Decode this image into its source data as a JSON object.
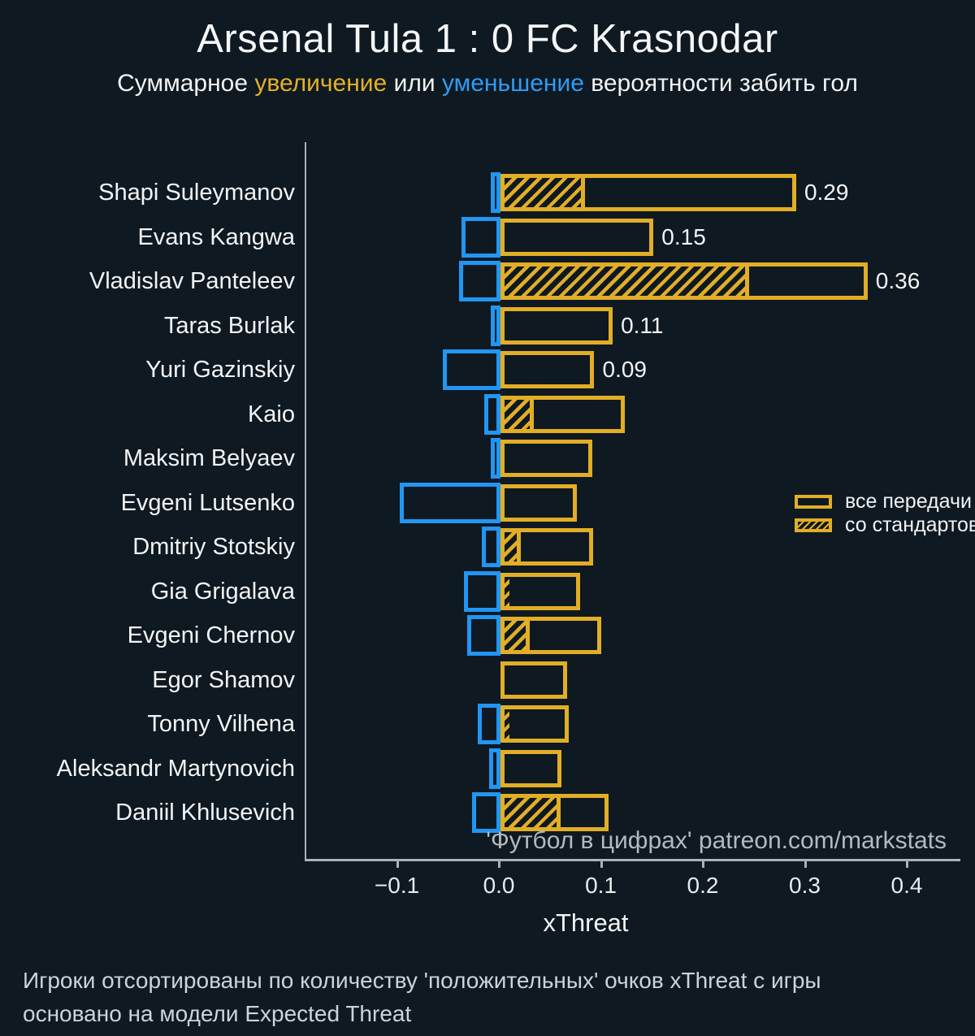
{
  "colors": {
    "background": "#0e1922",
    "positive": "#e2ae26",
    "negative": "#2196f3",
    "axis": "#a9b3b5",
    "text": "#f2f4f4",
    "subtitle_increase": "#e4b028",
    "subtitle_decrease": "#2e9df5",
    "watermark": "#b3babd",
    "footer": "#ced3d6"
  },
  "chart_data": {
    "type": "bar",
    "orientation": "horizontal",
    "title": "Arsenal Tula 1 : 0 FC Krasnodar",
    "subtitle_parts": [
      {
        "text": "Суммарное ",
        "style": "default"
      },
      {
        "text": "увеличение",
        "style": "increase"
      },
      {
        "text": " или ",
        "style": "default"
      },
      {
        "text": "уменьшение",
        "style": "decrease"
      },
      {
        "text": " вероятности забить гол",
        "style": "default"
      }
    ],
    "xlabel": "xThreat",
    "xlim": [
      -0.1905,
      0.451
    ],
    "xticks": [
      {
        "value": -0.1,
        "label": "−0.1"
      },
      {
        "value": 0.0,
        "label": "0.0"
      },
      {
        "value": 0.1,
        "label": "0.1"
      },
      {
        "value": 0.2,
        "label": "0.2"
      },
      {
        "value": 0.3,
        "label": "0.3"
      },
      {
        "value": 0.4,
        "label": "0.4"
      }
    ],
    "legend": [
      {
        "label": "все передачи",
        "swatch": "outline"
      },
      {
        "label": "со стандартов",
        "swatch": "hatch"
      }
    ],
    "watermark": "'Футбол в цифрах' patreon.com/markstats",
    "players": [
      {
        "name": "Shapi Suleymanov",
        "negative": -0.01,
        "positive": 0.29,
        "set_piece": 0.079,
        "label": "0.29"
      },
      {
        "name": "Evans Kangwa",
        "negative": -0.038,
        "positive": 0.15,
        "set_piece": 0,
        "label": "0.15"
      },
      {
        "name": "Vladislav Panteleev",
        "negative": -0.041,
        "positive": 0.36,
        "set_piece": 0.24,
        "label": "0.36"
      },
      {
        "name": "Taras Burlak",
        "negative": -0.01,
        "positive": 0.11,
        "set_piece": 0,
        "label": "0.11"
      },
      {
        "name": "Yuri Gazinskiy",
        "negative": -0.057,
        "positive": 0.092,
        "set_piece": 0,
        "label": "0.09"
      },
      {
        "name": "Kaio",
        "negative": -0.016,
        "positive": 0.122,
        "set_piece": 0.029,
        "label": ""
      },
      {
        "name": "Maksim Belyaev",
        "negative": -0.01,
        "positive": 0.09,
        "set_piece": 0,
        "label": ""
      },
      {
        "name": "Evgeni Lutsenko",
        "negative": -0.099,
        "positive": 0.075,
        "set_piece": 0,
        "label": ""
      },
      {
        "name": "Dmitriy Stotskiy",
        "negative": -0.018,
        "positive": 0.091,
        "set_piece": 0.016,
        "label": ""
      },
      {
        "name": "Gia Grigalava",
        "negative": -0.036,
        "positive": 0.078,
        "set_piece": 0.005,
        "label": ""
      },
      {
        "name": "Evgeni Chernov",
        "negative": -0.033,
        "positive": 0.099,
        "set_piece": 0.025,
        "label": ""
      },
      {
        "name": "Egor Shamov",
        "negative": 0,
        "positive": 0.065,
        "set_piece": 0,
        "label": ""
      },
      {
        "name": "Tonny Vilhena",
        "negative": -0.022,
        "positive": 0.067,
        "set_piece": 0.005,
        "label": ""
      },
      {
        "name": "Aleksandr Martynovich",
        "negative": -0.011,
        "positive": 0.06,
        "set_piece": 0,
        "label": ""
      },
      {
        "name": "Daniil Khlusevich",
        "negative": -0.028,
        "positive": 0.106,
        "set_piece": 0.055,
        "label": ""
      }
    ]
  },
  "footer": {
    "line1": "Игроки отсортированы по количеству 'положительных' очков xThreat с игры",
    "line2": "основано на модели Expected Threat"
  }
}
